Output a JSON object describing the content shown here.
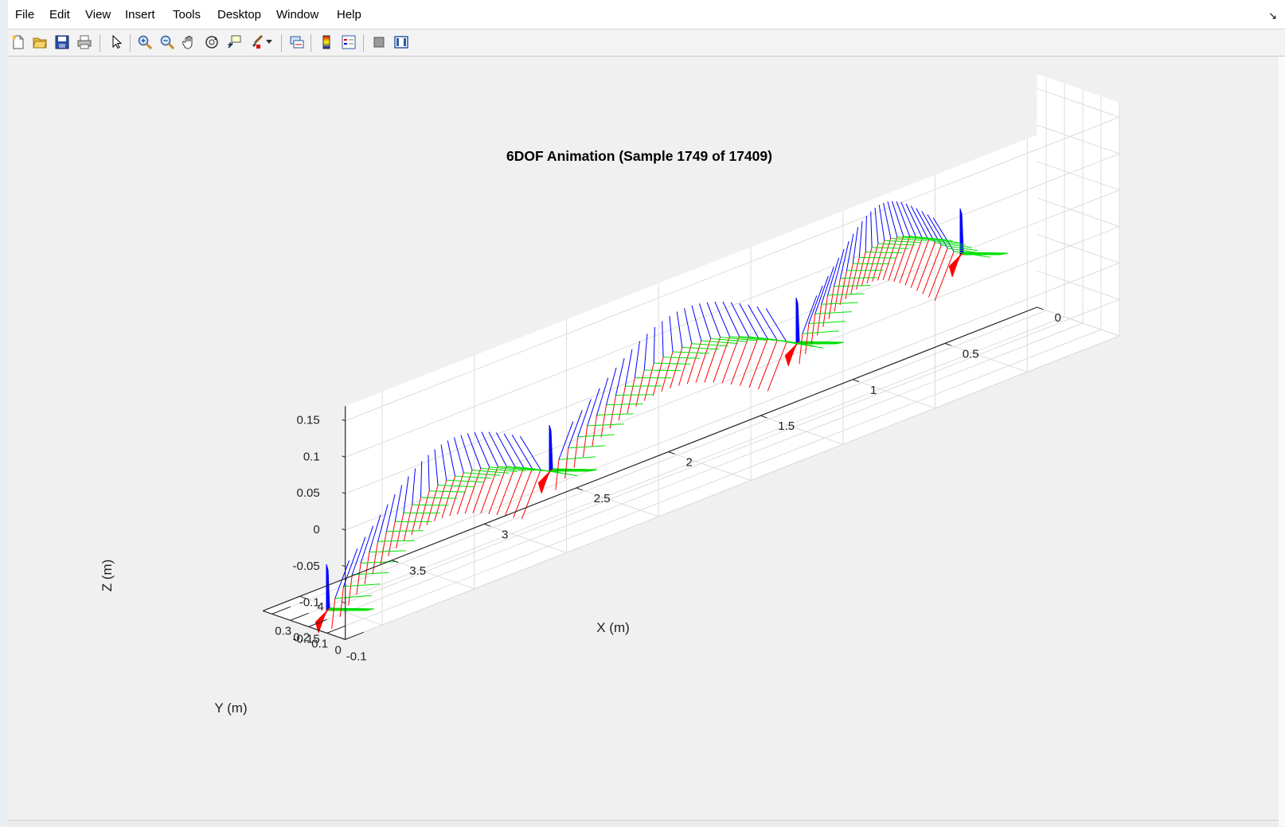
{
  "menu": {
    "items": [
      "File",
      "Edit",
      "View",
      "Insert",
      "Tools",
      "Desktop",
      "Window",
      "Help"
    ]
  },
  "toolbar": {
    "icons": [
      "new-figure-icon",
      "open-file-icon",
      "save-icon",
      "print-icon",
      "pointer-icon",
      "zoom-in-icon",
      "zoom-out-icon",
      "pan-icon",
      "rotate-3d-icon",
      "data-cursor-icon",
      "brush-icon",
      "link-plot-icon",
      "colorbar-icon",
      "legend-icon",
      "hide-plot-tools-icon",
      "show-plot-tools-icon"
    ]
  },
  "colors": {
    "x_axis_frame": "#ff0000",
    "y_axis_frame": "#00e000",
    "z_axis_frame": "#0000ff"
  },
  "chart_data": {
    "type": "line",
    "title": "6DOF Animation (Sample 1749 of 17409)",
    "xlabel": "X (m)",
    "ylabel": "Y (m)",
    "zlabel": "Z (m)",
    "xlim": [
      0,
      4.2
    ],
    "ylim": [
      -0.1,
      0.35
    ],
    "zlim": [
      -0.15,
      0.17
    ],
    "x_ticks": [
      "0",
      "0.5",
      "1",
      "1.5",
      "2",
      "2.5",
      "3",
      "3.5",
      "4"
    ],
    "y_ticks": [
      "-0.1",
      "0",
      "0.1",
      "0.2",
      "0.3"
    ],
    "z_ticks": [
      "-0.15",
      "-0.1",
      "-0.05",
      "0",
      "0.05",
      "0.1",
      "0.15"
    ],
    "grid": true,
    "series": [
      {
        "color": "#ff0000",
        "kind": "body-frame x-axis quivers"
      },
      {
        "color": "#00e000",
        "kind": "body-frame y-axis quivers"
      },
      {
        "color": "#0000ff",
        "kind": "body-frame z-axis quivers"
      }
    ]
  }
}
